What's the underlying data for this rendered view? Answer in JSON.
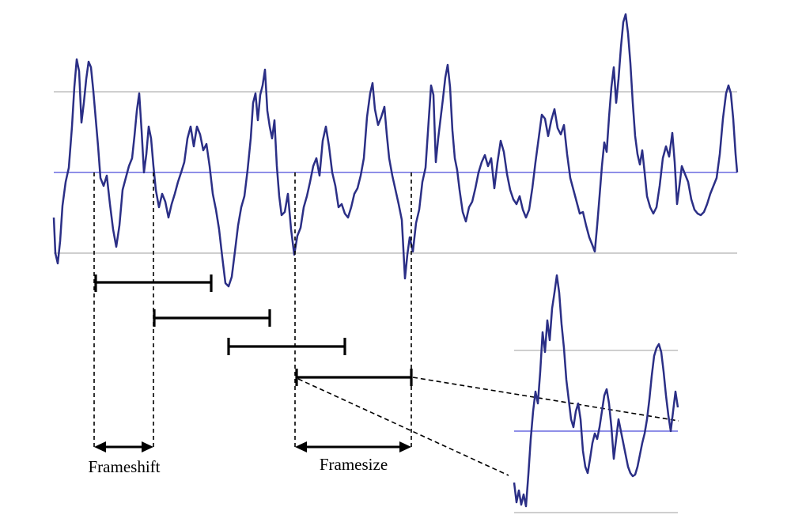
{
  "labels": {
    "frameshift": "Frameshift",
    "framesize": "Framesize"
  },
  "colors": {
    "waveform": "#2b2f86",
    "axis_line": "#8f8fe8",
    "gridline": "#cfcfcf",
    "annotation": "#000000",
    "background": "#ffffff"
  },
  "frames": {
    "count": 4
  }
}
